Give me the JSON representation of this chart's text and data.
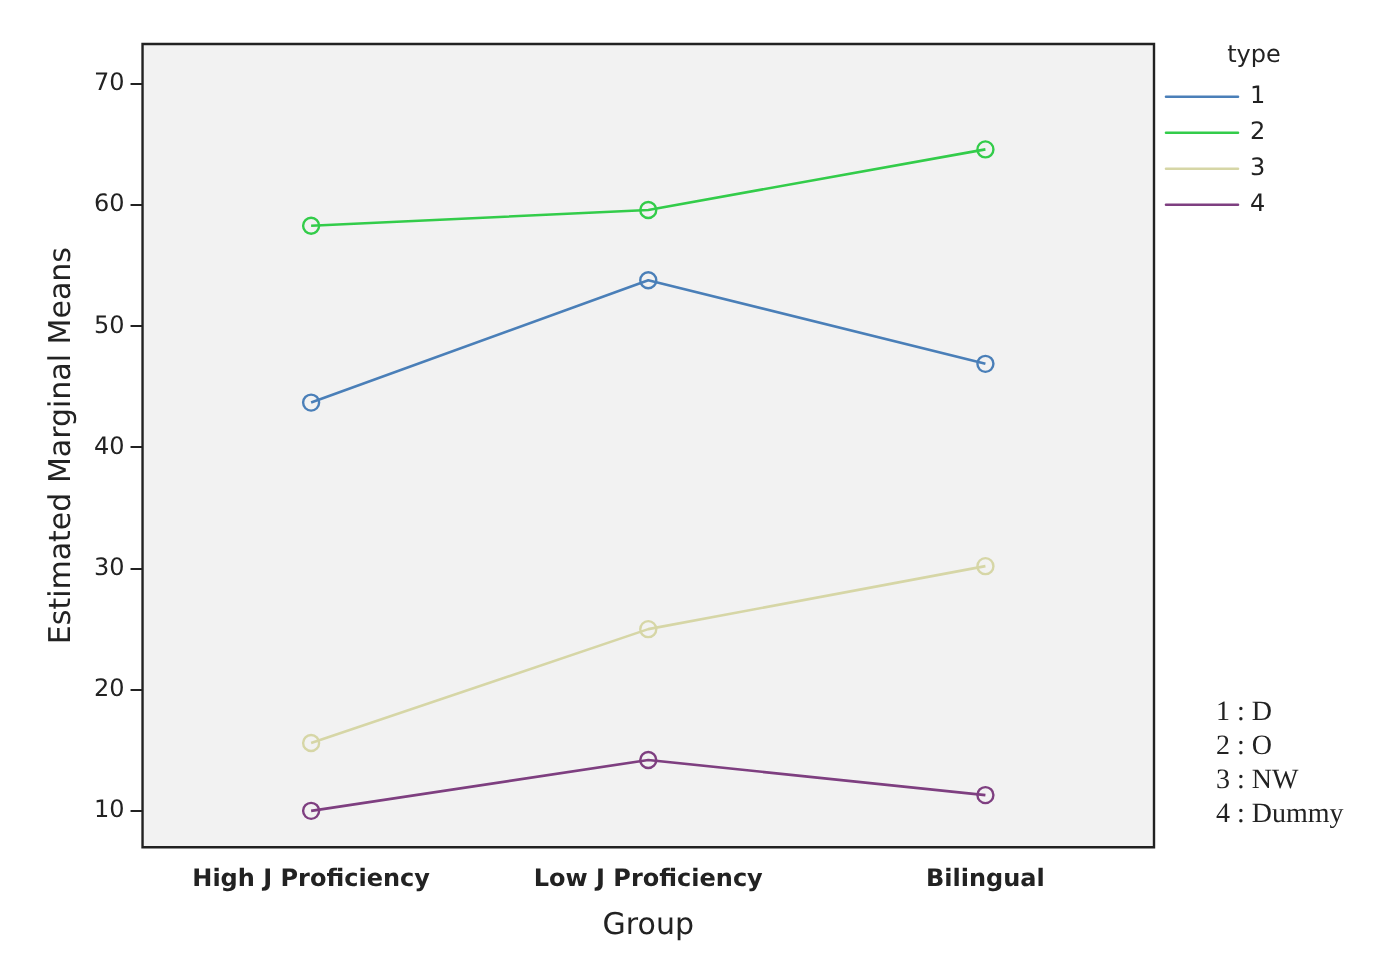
{
  "chart_data": {
    "type": "line",
    "xlabel": "Group",
    "ylabel": "Estimated Marginal Means",
    "categories": [
      "High J Proficiency",
      "Low J Proficiency",
      "Bilingual"
    ],
    "series": [
      {
        "name": "1",
        "color": "#4a7fb8",
        "values": [
          43.7,
          53.8,
          46.9
        ]
      },
      {
        "name": "2",
        "color": "#33cc4a",
        "values": [
          58.3,
          59.6,
          64.6
        ]
      },
      {
        "name": "3",
        "color": "#d6d6a6",
        "values": [
          15.6,
          25.0,
          30.2
        ]
      },
      {
        "name": "4",
        "color": "#7e3f80",
        "values": [
          10.0,
          14.2,
          11.3
        ]
      }
    ],
    "legend_title": "type",
    "legend": "top right",
    "ylim": [
      7,
      73.3
    ],
    "yticks": [
      10,
      20,
      30,
      40,
      50,
      60,
      70
    ],
    "marker": "circle",
    "line_style": "solid",
    "grid": false,
    "annotations": [
      "1 : D",
      "2 : O",
      "3 : NW",
      "4 : Dummy"
    ]
  }
}
